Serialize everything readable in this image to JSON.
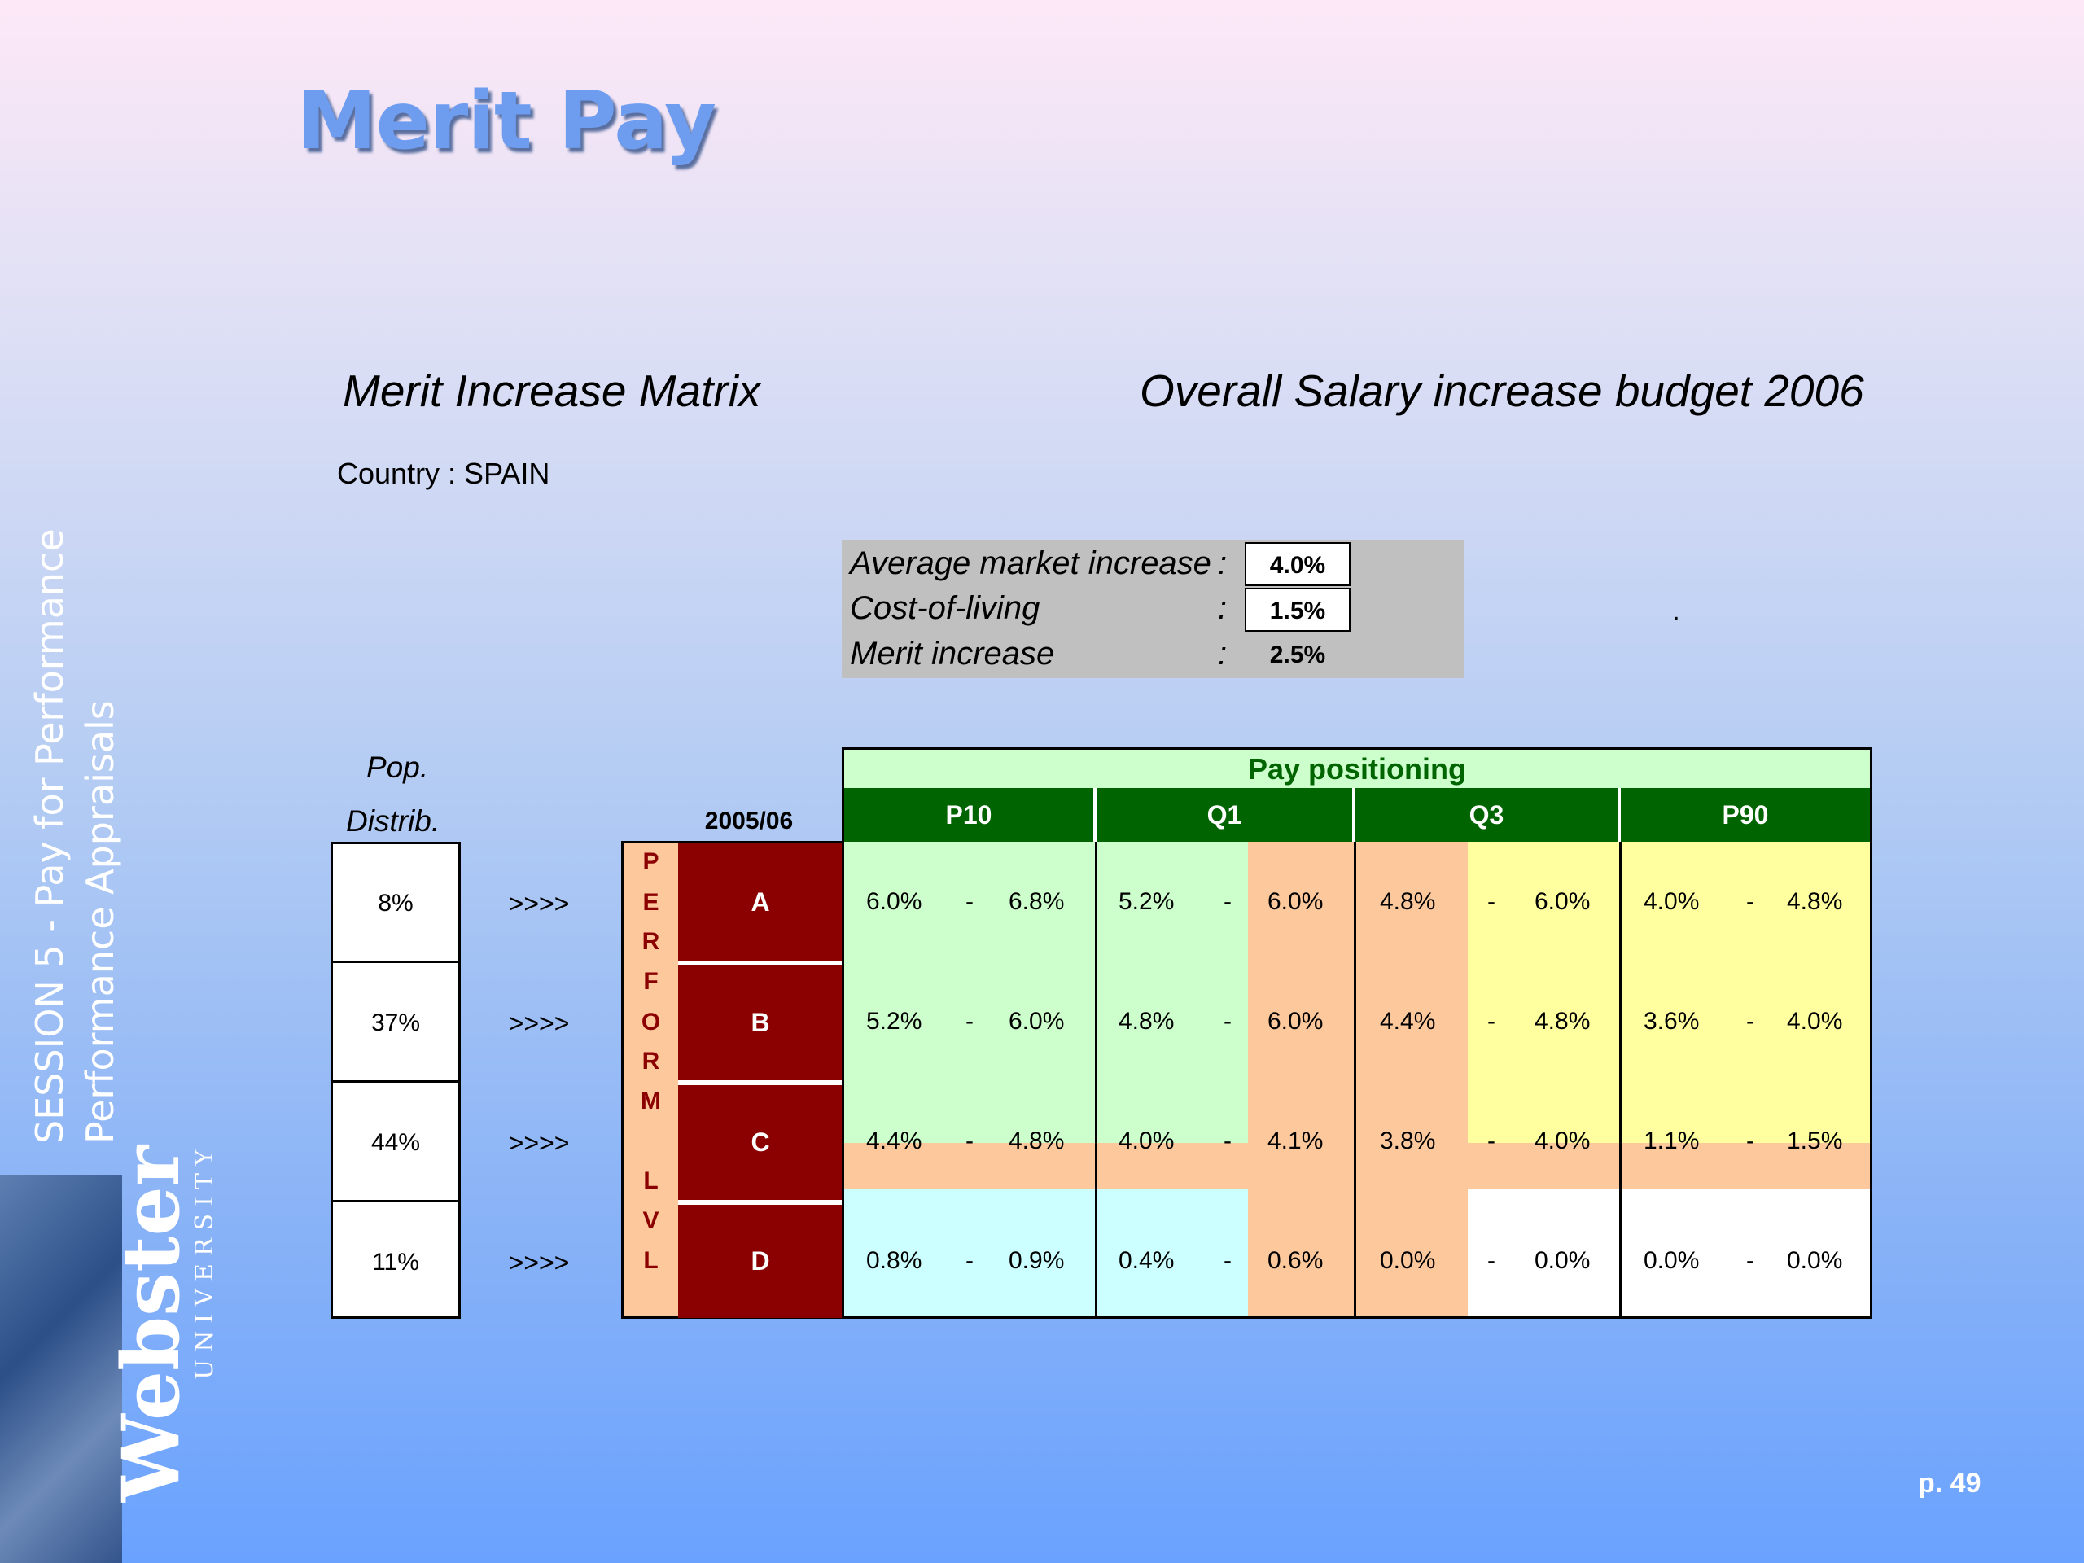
{
  "title": "Merit Pay",
  "left_heading": "Merit Increase Matrix",
  "right_heading": "Overall Salary increase budget 2006",
  "country": "Country : SPAIN",
  "sidebar": {
    "line1": "SESSION 5 - Pay for Performance",
    "line2": "Performance Appraisals"
  },
  "logo": {
    "name": "Webster",
    "sub": "UNIVERSITY"
  },
  "budget": {
    "rows": [
      {
        "label": "Average market increase",
        "colon": ":",
        "value": "4.0%"
      },
      {
        "label": "Cost-of-living",
        "colon": ":",
        "value": "1.5%"
      },
      {
        "label": "Merit increase",
        "colon": ":",
        "value": "2.5%"
      }
    ],
    "dot": "."
  },
  "pop": {
    "head1": "Pop.",
    "head2": "Distrib.",
    "values": [
      "8%",
      "37%",
      "44%",
      "11%"
    ],
    "arrow": ">>>>"
  },
  "perf_letters": [
    "P",
    "E",
    "R",
    "F",
    "O",
    "R",
    "M",
    "L",
    "V",
    "L"
  ],
  "year": "2005/06",
  "grades": [
    "A",
    "B",
    "C",
    "D"
  ],
  "pay_positioning": {
    "title": "Pay positioning",
    "columns": [
      "P10",
      "Q1",
      "Q3",
      "P90"
    ],
    "dash": "-",
    "rows": [
      {
        "grade": "A",
        "cells": [
          [
            "6.0%",
            "6.8%"
          ],
          [
            "5.2%",
            "6.0%"
          ],
          [
            "4.8%",
            "6.0%"
          ],
          [
            "4.0%",
            "4.8%"
          ]
        ]
      },
      {
        "grade": "B",
        "cells": [
          [
            "5.2%",
            "6.0%"
          ],
          [
            "4.8%",
            "6.0%"
          ],
          [
            "4.4%",
            "4.8%"
          ],
          [
            "3.6%",
            "4.0%"
          ]
        ]
      },
      {
        "grade": "C",
        "cells": [
          [
            "4.4%",
            "4.8%"
          ],
          [
            "4.0%",
            "4.1%"
          ],
          [
            "3.8%",
            "4.0%"
          ],
          [
            "1.1%",
            "1.5%"
          ]
        ]
      },
      {
        "grade": "D",
        "cells": [
          [
            "0.8%",
            "0.9%"
          ],
          [
            "0.4%",
            "0.6%"
          ],
          [
            "0.0%",
            "0.0%"
          ],
          [
            "0.0%",
            "0.0%"
          ]
        ]
      }
    ]
  },
  "colors": {
    "green_light": "#ccffcc",
    "peach": "#fdc89c",
    "yellow": "#ffffa0",
    "cyan": "#ccffff",
    "dark_red": "#8b0000",
    "dark_green": "#006400"
  },
  "page": "p. 49"
}
